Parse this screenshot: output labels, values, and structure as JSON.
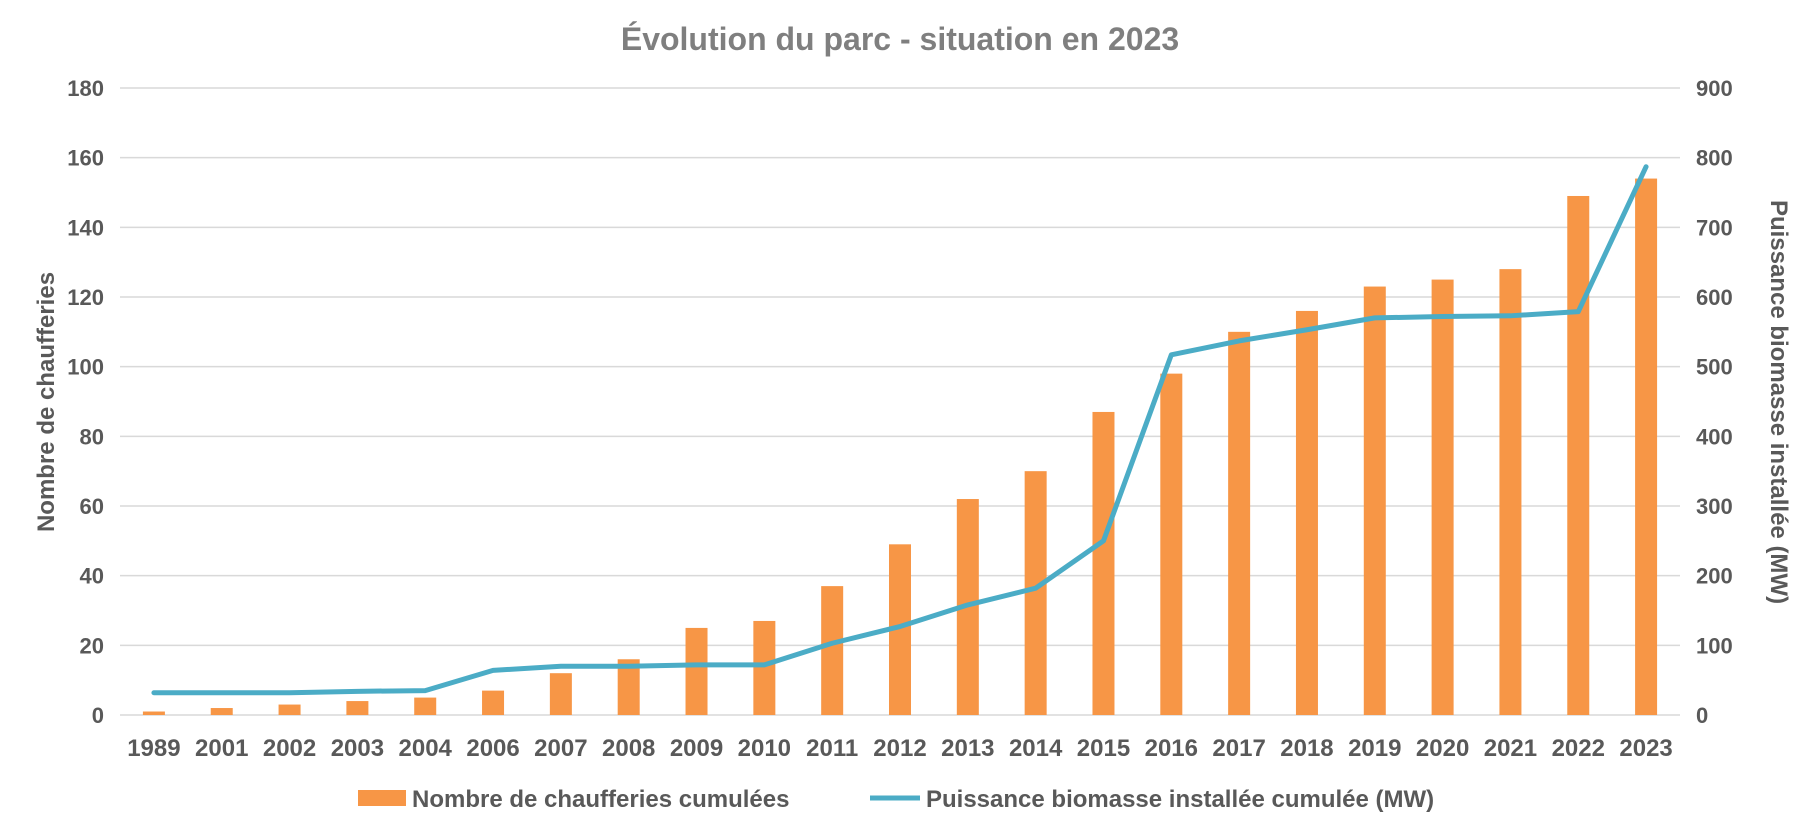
{
  "chart_data": {
    "type": "bar+line",
    "title": "Évolution du parc - situation en 2023",
    "categories": [
      "1989",
      "2001",
      "2002",
      "2003",
      "2004",
      "2006",
      "2007",
      "2008",
      "2009",
      "2010",
      "2011",
      "2012",
      "2013",
      "2014",
      "2015",
      "2016",
      "2017",
      "2018",
      "2019",
      "2020",
      "2021",
      "2022",
      "2023"
    ],
    "series": [
      {
        "name": "Nombre de chaufferies cumulées",
        "type": "bar",
        "axis": "left",
        "color": "#F79646",
        "values": [
          1,
          2,
          3,
          4,
          5,
          7,
          12,
          16,
          25,
          27,
          37,
          49,
          62,
          70,
          87,
          98,
          110,
          116,
          123,
          125,
          128,
          149,
          154
        ]
      },
      {
        "name": "Puissance biomasse installée cumulée (MW)",
        "type": "line",
        "axis": "right",
        "color": "#4BACC6",
        "values": [
          32,
          32,
          32,
          34,
          35,
          64,
          70,
          70,
          72,
          72,
          103,
          127,
          158,
          182,
          250,
          517,
          537,
          553,
          570,
          572,
          573,
          579,
          787
        ]
      }
    ],
    "y_left": {
      "label": "Nombre de chaufferies",
      "min": 0,
      "max": 180,
      "ticks": [
        0,
        20,
        40,
        60,
        80,
        100,
        120,
        140,
        160,
        180
      ]
    },
    "y_right": {
      "label": "Puissance biomasse installée (MW)",
      "min": 0,
      "max": 900,
      "ticks": [
        0,
        100,
        200,
        300,
        400,
        500,
        600,
        700,
        800,
        900
      ]
    },
    "grid": "horizontal",
    "legend": "bottom",
    "colors": {
      "text": "#595959",
      "title": "#7F7F7F",
      "grid": "#D9D9D9"
    }
  }
}
